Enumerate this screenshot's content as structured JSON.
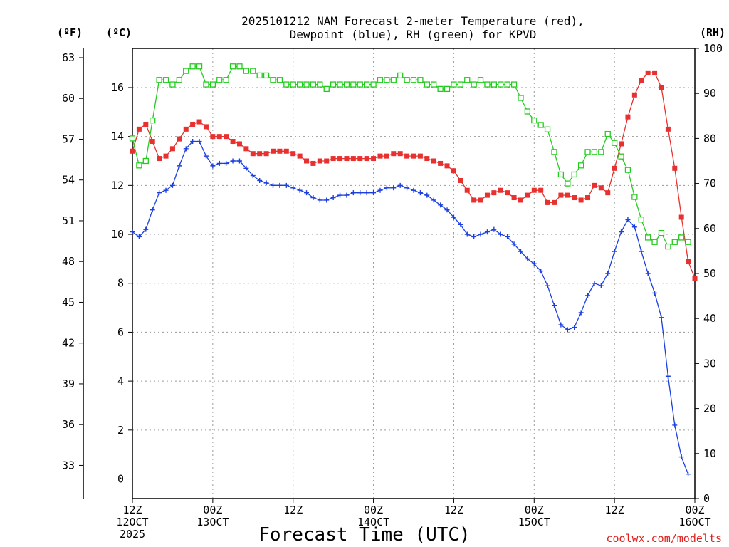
{
  "chart_data": {
    "type": "line",
    "title_line1": "2025101212 NAM Forecast 2-meter Temperature (red),",
    "title_line2": "Dewpoint (blue), RH (green) for KPVD",
    "xlabel": "Forecast Time (UTC)",
    "watermark": "coolwx.com/modelts",
    "units": {
      "fahrenheit": "(ºF)",
      "celsius": "(ºC)",
      "rh": "(RH)"
    },
    "x_range_hours": [
      0,
      84
    ],
    "x_ticks": [
      {
        "hour": 0,
        "line1": "12Z",
        "line2": "12OCT",
        "line3": "2025"
      },
      {
        "hour": 12,
        "line1": "00Z",
        "line2": "13OCT",
        "line3": ""
      },
      {
        "hour": 24,
        "line1": "12Z",
        "line2": "",
        "line3": ""
      },
      {
        "hour": 36,
        "line1": "00Z",
        "line2": "14OCT",
        "line3": ""
      },
      {
        "hour": 48,
        "line1": "12Z",
        "line2": "",
        "line3": ""
      },
      {
        "hour": 60,
        "line1": "00Z",
        "line2": "15OCT",
        "line3": ""
      },
      {
        "hour": 72,
        "line1": "12Z",
        "line2": "",
        "line3": ""
      },
      {
        "hour": 84,
        "line1": "00Z",
        "line2": "16OCT",
        "line3": ""
      }
    ],
    "ylim_celsius": [
      -0.8,
      17.6
    ],
    "yticks_celsius": [
      "0",
      "2",
      "4",
      "6",
      "8",
      "10",
      "12",
      "14",
      "16"
    ],
    "yticks_fahrenheit": [
      "33",
      "36",
      "39",
      "42",
      "45",
      "48",
      "51",
      "54",
      "57",
      "60",
      "63"
    ],
    "ylim_rh": [
      0,
      100
    ],
    "yticks_rh": [
      "0",
      "10",
      "20",
      "30",
      "40",
      "50",
      "60",
      "70",
      "80",
      "90",
      "100"
    ],
    "series": [
      {
        "name": "Temperature",
        "axis": "celsius",
        "color": "#e8302e",
        "marker": "filled-square",
        "points": [
          [
            0,
            13.4
          ],
          [
            1,
            14.3
          ],
          [
            2,
            14.5
          ],
          [
            3,
            13.8
          ],
          [
            4,
            13.1
          ],
          [
            5,
            13.2
          ],
          [
            6,
            13.5
          ],
          [
            7,
            13.9
          ],
          [
            8,
            14.3
          ],
          [
            9,
            14.5
          ],
          [
            10,
            14.6
          ],
          [
            11,
            14.4
          ],
          [
            12,
            14.0
          ],
          [
            13,
            14.0
          ],
          [
            14,
            14.0
          ],
          [
            15,
            13.8
          ],
          [
            16,
            13.7
          ],
          [
            17,
            13.5
          ],
          [
            18,
            13.3
          ],
          [
            19,
            13.3
          ],
          [
            20,
            13.3
          ],
          [
            21,
            13.4
          ],
          [
            22,
            13.4
          ],
          [
            23,
            13.4
          ],
          [
            24,
            13.3
          ],
          [
            25,
            13.2
          ],
          [
            26,
            13.0
          ],
          [
            27,
            12.9
          ],
          [
            28,
            13.0
          ],
          [
            29,
            13.0
          ],
          [
            30,
            13.1
          ],
          [
            31,
            13.1
          ],
          [
            32,
            13.1
          ],
          [
            33,
            13.1
          ],
          [
            34,
            13.1
          ],
          [
            35,
            13.1
          ],
          [
            36,
            13.1
          ],
          [
            37,
            13.2
          ],
          [
            38,
            13.2
          ],
          [
            39,
            13.3
          ],
          [
            40,
            13.3
          ],
          [
            41,
            13.2
          ],
          [
            42,
            13.2
          ],
          [
            43,
            13.2
          ],
          [
            44,
            13.1
          ],
          [
            45,
            13.0
          ],
          [
            46,
            12.9
          ],
          [
            47,
            12.8
          ],
          [
            48,
            12.6
          ],
          [
            49,
            12.2
          ],
          [
            50,
            11.8
          ],
          [
            51,
            11.4
          ],
          [
            52,
            11.4
          ],
          [
            53,
            11.6
          ],
          [
            54,
            11.7
          ],
          [
            55,
            11.8
          ],
          [
            56,
            11.7
          ],
          [
            57,
            11.5
          ],
          [
            58,
            11.4
          ],
          [
            59,
            11.6
          ],
          [
            60,
            11.8
          ],
          [
            61,
            11.8
          ],
          [
            62,
            11.3
          ],
          [
            63,
            11.3
          ],
          [
            64,
            11.6
          ],
          [
            65,
            11.6
          ],
          [
            66,
            11.5
          ],
          [
            67,
            11.4
          ],
          [
            68,
            11.5
          ],
          [
            69,
            12.0
          ],
          [
            70,
            11.9
          ],
          [
            71,
            11.7
          ],
          [
            72,
            12.7
          ],
          [
            73,
            13.7
          ],
          [
            74,
            14.8
          ],
          [
            75,
            15.7
          ],
          [
            76,
            16.3
          ],
          [
            77,
            16.6
          ],
          [
            78,
            16.6
          ],
          [
            79,
            16.0
          ],
          [
            80,
            14.3
          ],
          [
            81,
            12.7
          ],
          [
            82,
            10.7
          ],
          [
            83,
            8.9
          ],
          [
            84,
            8.2
          ]
        ]
      },
      {
        "name": "Dewpoint",
        "axis": "celsius",
        "color": "#1c3fe0",
        "marker": "plus",
        "points": [
          [
            0,
            10.1
          ],
          [
            1,
            9.9
          ],
          [
            2,
            10.2
          ],
          [
            3,
            11.0
          ],
          [
            4,
            11.7
          ],
          [
            5,
            11.8
          ],
          [
            6,
            12.0
          ],
          [
            7,
            12.8
          ],
          [
            8,
            13.5
          ],
          [
            9,
            13.8
          ],
          [
            10,
            13.8
          ],
          [
            11,
            13.2
          ],
          [
            12,
            12.8
          ],
          [
            13,
            12.9
          ],
          [
            14,
            12.9
          ],
          [
            15,
            13.0
          ],
          [
            16,
            13.0
          ],
          [
            17,
            12.7
          ],
          [
            18,
            12.4
          ],
          [
            19,
            12.2
          ],
          [
            20,
            12.1
          ],
          [
            21,
            12.0
          ],
          [
            22,
            12.0
          ],
          [
            23,
            12.0
          ],
          [
            24,
            11.9
          ],
          [
            25,
            11.8
          ],
          [
            26,
            11.7
          ],
          [
            27,
            11.5
          ],
          [
            28,
            11.4
          ],
          [
            29,
            11.4
          ],
          [
            30,
            11.5
          ],
          [
            31,
            11.6
          ],
          [
            32,
            11.6
          ],
          [
            33,
            11.7
          ],
          [
            34,
            11.7
          ],
          [
            35,
            11.7
          ],
          [
            36,
            11.7
          ],
          [
            37,
            11.8
          ],
          [
            38,
            11.9
          ],
          [
            39,
            11.9
          ],
          [
            40,
            12.0
          ],
          [
            41,
            11.9
          ],
          [
            42,
            11.8
          ],
          [
            43,
            11.7
          ],
          [
            44,
            11.6
          ],
          [
            45,
            11.4
          ],
          [
            46,
            11.2
          ],
          [
            47,
            11.0
          ],
          [
            48,
            10.7
          ],
          [
            49,
            10.4
          ],
          [
            50,
            10.0
          ],
          [
            51,
            9.9
          ],
          [
            52,
            10.0
          ],
          [
            53,
            10.1
          ],
          [
            54,
            10.2
          ],
          [
            55,
            10.0
          ],
          [
            56,
            9.9
          ],
          [
            57,
            9.6
          ],
          [
            58,
            9.3
          ],
          [
            59,
            9.0
          ],
          [
            60,
            8.8
          ],
          [
            61,
            8.5
          ],
          [
            62,
            7.9
          ],
          [
            63,
            7.1
          ],
          [
            64,
            6.3
          ],
          [
            65,
            6.1
          ],
          [
            66,
            6.2
          ],
          [
            67,
            6.8
          ],
          [
            68,
            7.5
          ],
          [
            69,
            8.0
          ],
          [
            70,
            7.9
          ],
          [
            71,
            8.4
          ],
          [
            72,
            9.3
          ],
          [
            73,
            10.1
          ],
          [
            74,
            10.6
          ],
          [
            75,
            10.3
          ],
          [
            76,
            9.3
          ],
          [
            77,
            8.4
          ],
          [
            78,
            7.6
          ],
          [
            79,
            6.6
          ],
          [
            80,
            4.2
          ],
          [
            81,
            2.2
          ],
          [
            82,
            0.9
          ],
          [
            83,
            0.2
          ]
        ]
      },
      {
        "name": "RH",
        "axis": "rh",
        "color": "#22cc1c",
        "marker": "open-square",
        "points": [
          [
            0,
            80
          ],
          [
            1,
            74
          ],
          [
            2,
            75
          ],
          [
            3,
            84
          ],
          [
            4,
            93
          ],
          [
            5,
            93
          ],
          [
            6,
            92
          ],
          [
            7,
            93
          ],
          [
            8,
            95
          ],
          [
            9,
            96
          ],
          [
            10,
            96
          ],
          [
            11,
            92
          ],
          [
            12,
            92
          ],
          [
            13,
            93
          ],
          [
            14,
            93
          ],
          [
            15,
            96
          ],
          [
            16,
            96
          ],
          [
            17,
            95
          ],
          [
            18,
            95
          ],
          [
            19,
            94
          ],
          [
            20,
            94
          ],
          [
            21,
            93
          ],
          [
            22,
            93
          ],
          [
            23,
            92
          ],
          [
            24,
            92
          ],
          [
            25,
            92
          ],
          [
            26,
            92
          ],
          [
            27,
            92
          ],
          [
            28,
            92
          ],
          [
            29,
            91
          ],
          [
            30,
            92
          ],
          [
            31,
            92
          ],
          [
            32,
            92
          ],
          [
            33,
            92
          ],
          [
            34,
            92
          ],
          [
            35,
            92
          ],
          [
            36,
            92
          ],
          [
            37,
            93
          ],
          [
            38,
            93
          ],
          [
            39,
            93
          ],
          [
            40,
            94
          ],
          [
            41,
            93
          ],
          [
            42,
            93
          ],
          [
            43,
            93
          ],
          [
            44,
            92
          ],
          [
            45,
            92
          ],
          [
            46,
            91
          ],
          [
            47,
            91
          ],
          [
            48,
            92
          ],
          [
            49,
            92
          ],
          [
            50,
            93
          ],
          [
            51,
            92
          ],
          [
            52,
            93
          ],
          [
            53,
            92
          ],
          [
            54,
            92
          ],
          [
            55,
            92
          ],
          [
            56,
            92
          ],
          [
            57,
            92
          ],
          [
            58,
            89
          ],
          [
            59,
            86
          ],
          [
            60,
            84
          ],
          [
            61,
            83
          ],
          [
            62,
            82
          ],
          [
            63,
            77
          ],
          [
            64,
            72
          ],
          [
            65,
            70
          ],
          [
            66,
            72
          ],
          [
            67,
            74
          ],
          [
            68,
            77
          ],
          [
            69,
            77
          ],
          [
            70,
            77
          ],
          [
            71,
            81
          ],
          [
            72,
            79
          ],
          [
            73,
            76
          ],
          [
            74,
            73
          ],
          [
            75,
            67
          ],
          [
            76,
            62
          ],
          [
            77,
            58
          ],
          [
            78,
            57
          ],
          [
            79,
            59
          ],
          [
            80,
            56
          ],
          [
            81,
            57
          ],
          [
            82,
            58
          ],
          [
            83,
            57
          ]
        ]
      }
    ]
  }
}
